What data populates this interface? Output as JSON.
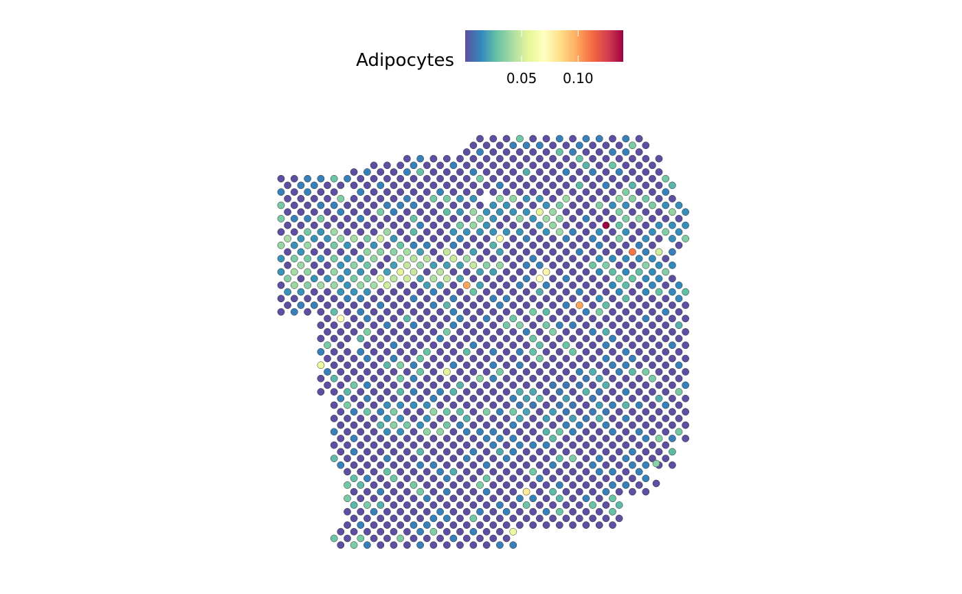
{
  "chart_data": {
    "type": "scatter",
    "subtype": "spatial spot plot (hexagonal grid)",
    "fill_variable": "Adipocytes",
    "legend": {
      "title": "Adipocytes",
      "placement": "top",
      "ticks": [
        {
          "value": 0.05,
          "label": "0.05"
        },
        {
          "value": 0.1,
          "label": "0.10"
        }
      ],
      "range": [
        0.0,
        0.14
      ],
      "palette": [
        "#5E4FA2",
        "#3288BD",
        "#66C2A5",
        "#ABDDA4",
        "#E6F598",
        "#FFFFBF",
        "#FEE08B",
        "#FDAE61",
        "#F46D43",
        "#D53E4F",
        "#9E0142"
      ]
    },
    "grid": false,
    "axes_visible": false,
    "layout": "hexagonal (odd rows offset by half spacing)",
    "grid_size": {
      "columns": 31,
      "rows": 64
    },
    "default_value": 0.0,
    "missing_spots": [
      [
        29,
        16
      ],
      [
        30,
        9
      ],
      [
        32,
        8
      ],
      [
        32,
        7
      ],
      [
        33,
        7
      ],
      [
        34,
        8
      ],
      [
        35,
        8
      ],
      [
        35,
        7
      ],
      [
        34,
        6
      ],
      [
        36,
        7
      ],
      [
        5,
        8
      ],
      [
        15,
        9
      ],
      [
        5,
        31
      ],
      [
        44,
        19
      ],
      [
        46,
        24
      ],
      [
        50,
        16
      ],
      [
        51,
        19
      ]
    ],
    "notable_spots": [
      {
        "c": 24,
        "r": 13,
        "value": 0.14
      },
      {
        "c": 26,
        "r": 17,
        "value": 0.11
      },
      {
        "c": 14,
        "r": 22,
        "value": 0.1
      },
      {
        "c": 22,
        "r": 25,
        "value": 0.1
      },
      {
        "c": 20,
        "r": 20,
        "value": 0.075
      },
      {
        "c": 19,
        "r": 21,
        "value": 0.07
      },
      {
        "c": 18,
        "r": 53,
        "value": 0.08
      },
      {
        "c": 16,
        "r": 15,
        "value": 0.065
      },
      {
        "c": 4,
        "r": 27,
        "value": 0.07
      },
      {
        "c": 9,
        "r": 20,
        "value": 0.055
      },
      {
        "c": 8,
        "r": 22,
        "value": 0.05
      },
      {
        "c": 7,
        "r": 21,
        "value": 0.05
      },
      {
        "c": 9,
        "r": 21,
        "value": 0.05
      },
      {
        "c": 19,
        "r": 11,
        "value": 0.055
      },
      {
        "c": 7,
        "r": 15,
        "value": 0.05
      },
      {
        "c": 17,
        "r": 59,
        "value": 0.06
      },
      {
        "c": 12,
        "r": 35,
        "value": 0.055
      },
      {
        "c": 3,
        "r": 34,
        "value": 0.06
      },
      {
        "c": 31,
        "r": 16,
        "value": 0.05
      },
      {
        "c": 28,
        "r": 17,
        "value": 0.05
      }
    ],
    "hotspot_zones": [
      {
        "cMin": 0,
        "cMax": 8,
        "rMin": 14,
        "rMax": 23,
        "level": 0.03
      },
      {
        "cMin": 8,
        "cMax": 16,
        "rMin": 17,
        "rMax": 22,
        "level": 0.035
      },
      {
        "cMin": 13,
        "cMax": 21,
        "rMin": 9,
        "rMax": 14,
        "level": 0.03
      },
      {
        "cMin": 24,
        "cMax": 31,
        "rMin": 9,
        "rMax": 15,
        "level": 0.028
      },
      {
        "cMin": 24,
        "cMax": 30,
        "rMin": 18,
        "rMax": 24,
        "level": 0.026
      },
      {
        "cMin": 8,
        "cMax": 12,
        "rMin": 40,
        "rMax": 44,
        "level": 0.028
      },
      {
        "cMin": 18,
        "cMax": 24,
        "rMin": 36,
        "rMax": 42,
        "level": 0.018
      }
    ]
  }
}
